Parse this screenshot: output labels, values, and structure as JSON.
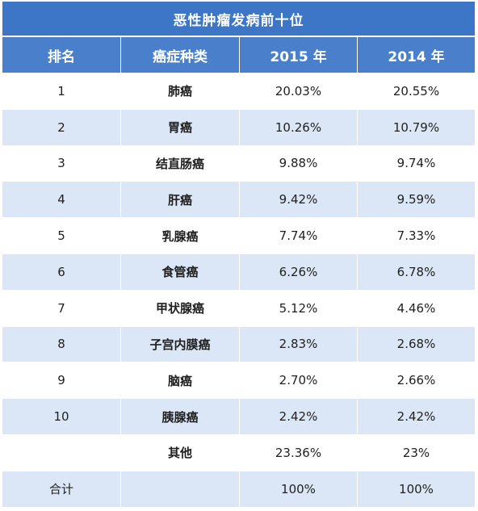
{
  "table": {
    "title": "恶性肿瘤发病前十位",
    "headers": [
      "排名",
      "癌症种类",
      "2015 年",
      "2014 年"
    ],
    "rows": [
      {
        "rank": "1",
        "type": "肺癌",
        "y2015": "20.03%",
        "y2014": "20.55%"
      },
      {
        "rank": "2",
        "type": "胃癌",
        "y2015": "10.26%",
        "y2014": "10.79%"
      },
      {
        "rank": "3",
        "type": "结直肠癌",
        "y2015": "9.88%",
        "y2014": "9.74%"
      },
      {
        "rank": "4",
        "type": "肝癌",
        "y2015": "9.42%",
        "y2014": "9.59%"
      },
      {
        "rank": "5",
        "type": "乳腺癌",
        "y2015": "7.74%",
        "y2014": "7.33%"
      },
      {
        "rank": "6",
        "type": "食管癌",
        "y2015": "6.26%",
        "y2014": "6.78%"
      },
      {
        "rank": "7",
        "type": "甲状腺癌",
        "y2015": "5.12%",
        "y2014": "4.46%"
      },
      {
        "rank": "8",
        "type": "子宫内膜癌",
        "y2015": "2.83%",
        "y2014": "2.68%"
      },
      {
        "rank": "9",
        "type": "脑癌",
        "y2015": "2.70%",
        "y2014": "2.66%"
      },
      {
        "rank": "10",
        "type": "胰腺癌",
        "y2015": "2.42%",
        "y2014": "2.42%"
      },
      {
        "rank": "",
        "type": "其他",
        "y2015": "23.36%",
        "y2014": "23%"
      },
      {
        "rank": "合计",
        "type": "",
        "y2015": "100%",
        "y2014": "100%"
      }
    ]
  },
  "colors": {
    "header_blue": "#4a7fcb",
    "title_blue": "#3d76c6",
    "stripe_blue": "#dbe7f6",
    "white": "#ffffff"
  }
}
